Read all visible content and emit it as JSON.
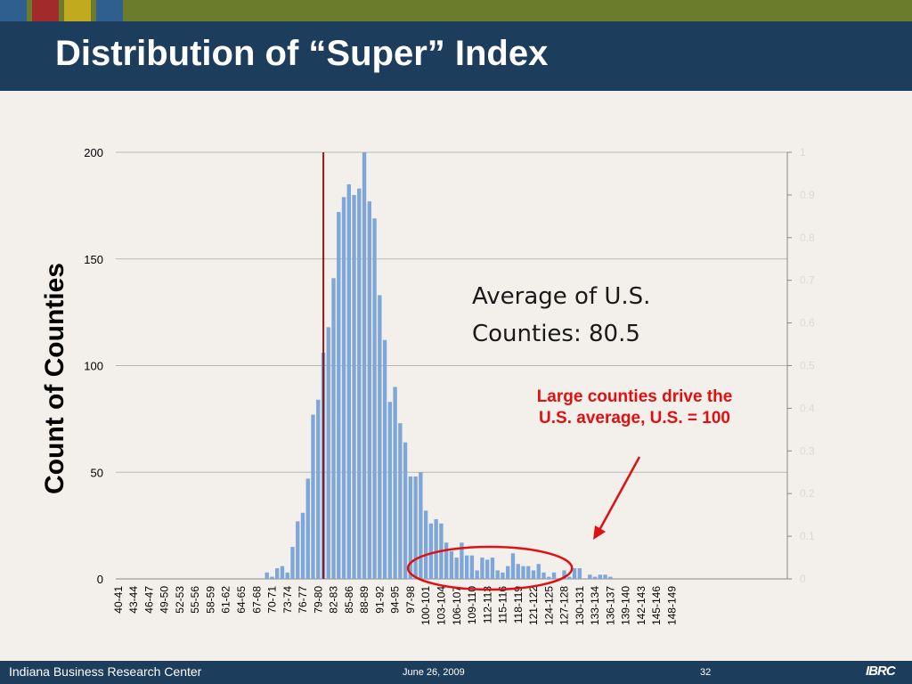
{
  "slide": {
    "title": "Distribution of “Super” Index",
    "note_average": "Average of U.S. Counties: 80.5",
    "note_large": "Large counties drive the U.S. average, U.S. = 100",
    "footer_org": "Indiana Business Research Center",
    "footer_date": "June 26, 2009",
    "page_number": "32",
    "logo_text": "IBRC"
  },
  "colors": {
    "bar": "#7ea6d8",
    "avg_line": "#8b1a1a",
    "annotation": "#e01010",
    "header": "#1d3d5c",
    "top_band": "#6b7d2c"
  },
  "chart_data": {
    "type": "bar",
    "ylabel": "Count of Counties",
    "ylim": [
      0,
      200
    ],
    "y_ticks": [
      0,
      50,
      100,
      150,
      200
    ],
    "y2lim": [
      0,
      1
    ],
    "y2_ticks": [
      "0",
      "0.1",
      "0.2",
      "0.3",
      "0.4",
      "0.5",
      "0.6",
      "0.7",
      "0.8",
      "0.9",
      "1"
    ],
    "grid": true,
    "x_start": 40,
    "x_end": 149,
    "x_tick_labels": [
      "40-41",
      "43-44",
      "46-47",
      "49-50",
      "52-53",
      "55-56",
      "58-59",
      "61-62",
      "64-65",
      "67-68",
      "70-71",
      "73-74",
      "76-77",
      "79-80",
      "82-83",
      "85-86",
      "88-89",
      "91-92",
      "94-95",
      "97-98",
      "100-101",
      "103-104",
      "106-107",
      "109-110",
      "112-113",
      "115-116",
      "118-119",
      "121-122",
      "124-125",
      "127-128",
      "130-131",
      "133-134",
      "136-137",
      "139-140",
      "142-143",
      "145-146",
      "148-149"
    ],
    "values": [
      0,
      0,
      0,
      0,
      0,
      0,
      0,
      0,
      0,
      0,
      0,
      0,
      0,
      0,
      0,
      0,
      0,
      0,
      0,
      0,
      0,
      0,
      0,
      0,
      0,
      0,
      0,
      0,
      0,
      3,
      1,
      5,
      6,
      3,
      15,
      27,
      31,
      47,
      77,
      84,
      106,
      118,
      141,
      172,
      179,
      185,
      180,
      183,
      200,
      177,
      169,
      133,
      112,
      83,
      90,
      73,
      64,
      48,
      48,
      50,
      32,
      26,
      28,
      26,
      17,
      13,
      10,
      17,
      11,
      11,
      4,
      10,
      9,
      10,
      4,
      3,
      6,
      12,
      7,
      6,
      6,
      4,
      7,
      3,
      1,
      3,
      0,
      4,
      1,
      5,
      5,
      0,
      2,
      1,
      2,
      2,
      1,
      0,
      0,
      0,
      0,
      0,
      0,
      0,
      0,
      0,
      0,
      0,
      0,
      0,
      0,
      0,
      0,
      0,
      0,
      0,
      0,
      0,
      0,
      0,
      0,
      0,
      0,
      0,
      0,
      0,
      0,
      0,
      0,
      0,
      0
    ],
    "average_line_x": 80.5,
    "average_label": "Average of U.S. Counties: 80.5",
    "highlight_range": [
      97,
      129
    ]
  }
}
